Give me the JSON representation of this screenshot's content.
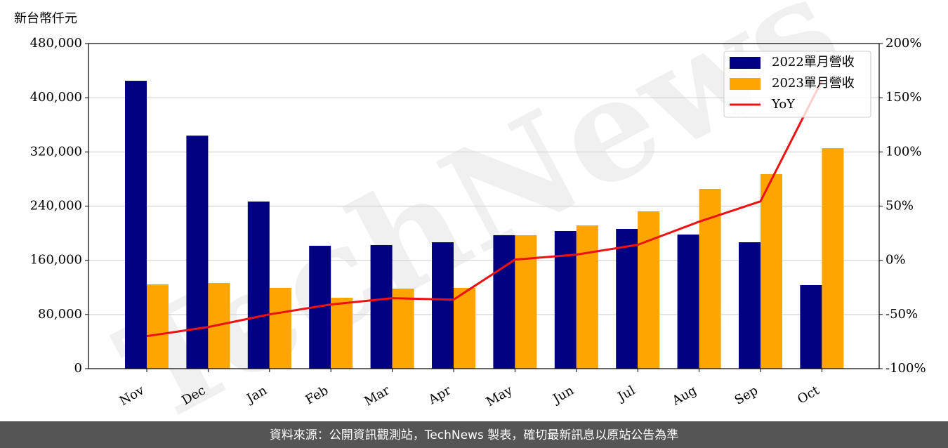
{
  "chart_data": {
    "type": "bar_line",
    "y_label": "新台幣仟元",
    "watermark": "TechNews",
    "footer": "資料來源：公開資訊觀測站，TechNews 製表，確切最新訊息以原站公告為準",
    "categories": [
      "Nov",
      "Dec",
      "Jan",
      "Feb",
      "Mar",
      "Apr",
      "May",
      "Jun",
      "Jul",
      "Aug",
      "Sep",
      "Oct"
    ],
    "series": [
      {
        "name": "2022單月營收",
        "type": "bar",
        "color": "#000080",
        "values": [
          425000,
          344000,
          246700,
          181400,
          182500,
          186600,
          197000,
          203200,
          206300,
          198000,
          186600,
          123400
        ]
      },
      {
        "name": "2023單月營收",
        "type": "bar",
        "color": "#ffa500",
        "values": [
          124400,
          126500,
          119200,
          104700,
          118200,
          119200,
          197000,
          211500,
          232200,
          265400,
          287200,
          325500
        ]
      },
      {
        "name": "YoY",
        "type": "line",
        "axis": "y2",
        "color": "#ee1111",
        "values": [
          -70.0,
          -61.6,
          -49.9,
          -40.8,
          -35.0,
          -36.3,
          0.6,
          5.2,
          14.3,
          35.6,
          54.4,
          165.9
        ]
      }
    ],
    "ylim": [
      0,
      480000
    ],
    "yticks": [
      0,
      {
        "value": 80000,
        "label": "80,000"
      },
      {
        "value": 160000,
        "label": "160,000"
      },
      {
        "value": 240000,
        "label": "240,000"
      },
      {
        "value": 320000,
        "label": "320,000"
      },
      {
        "value": 400000,
        "label": "400,000"
      },
      {
        "value": 480000,
        "label": "480,000"
      }
    ],
    "y2lim": [
      -100,
      200
    ],
    "y2ticks": [
      {
        "value": -100,
        "label": "-100%"
      },
      {
        "value": -50,
        "label": "-50%"
      },
      {
        "value": 0,
        "label": "0%"
      },
      {
        "value": 50,
        "label": "50%"
      },
      {
        "value": 100,
        "label": "100%"
      },
      {
        "value": 150,
        "label": "150%"
      },
      {
        "value": 200,
        "label": "200%"
      }
    ],
    "grid": true,
    "legend": "upper right"
  }
}
